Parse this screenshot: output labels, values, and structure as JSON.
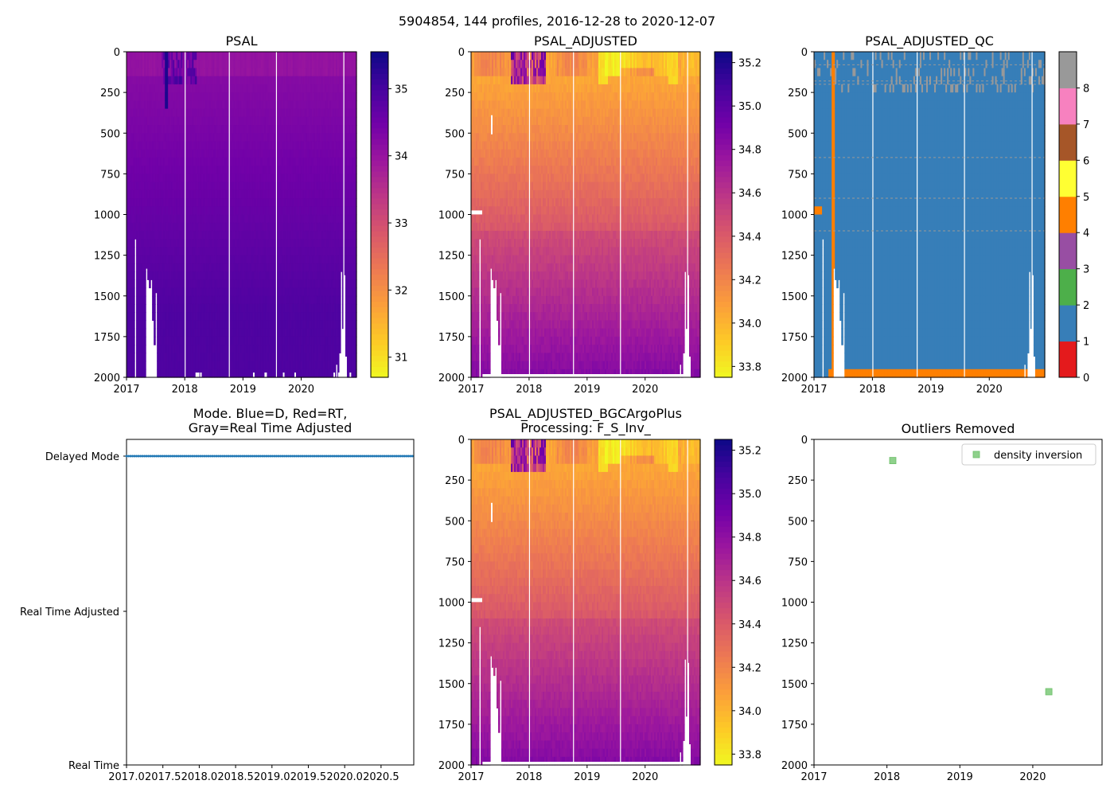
{
  "suptitle": "5904854, 144 profiles, 2016-12-28 to 2020-12-07",
  "chart_data": [
    {
      "id": "psal",
      "type": "heatmap",
      "title": "PSAL",
      "ylim": [
        2000,
        0
      ],
      "xlim": [
        2017.0,
        2020.95
      ],
      "xticks": [
        "2017",
        "2018",
        "2019",
        "2020"
      ],
      "yticks": [
        "0",
        "250",
        "500",
        "750",
        "1000",
        "1250",
        "1500",
        "1750",
        "2000"
      ],
      "colormap": "plasma_r",
      "color_range": [
        30.7,
        35.55
      ],
      "colorbar_ticks": [
        "31",
        "32",
        "33",
        "34",
        "35"
      ]
    },
    {
      "id": "psal_adj",
      "type": "heatmap",
      "title": "PSAL_ADJUSTED",
      "ylim": [
        2000,
        0
      ],
      "xlim": [
        2017.0,
        2020.95
      ],
      "xticks": [
        "2017",
        "2018",
        "2019",
        "2020"
      ],
      "yticks": [
        "0",
        "250",
        "500",
        "750",
        "1000",
        "1250",
        "1500",
        "1750",
        "2000"
      ],
      "colormap": "plasma_r",
      "color_range": [
        33.75,
        35.25
      ],
      "colorbar_ticks": [
        "33.8",
        "34.0",
        "34.2",
        "34.4",
        "34.6",
        "34.8",
        "35.0",
        "35.2"
      ]
    },
    {
      "id": "psal_qc",
      "type": "heatmap",
      "title": "PSAL_ADJUSTED_QC",
      "ylim": [
        2000,
        0
      ],
      "xlim": [
        2017.0,
        2020.95
      ],
      "xticks": [
        "2017",
        "2018",
        "2019",
        "2020"
      ],
      "yticks": [
        "0",
        "250",
        "500",
        "750",
        "1000",
        "1250",
        "1500",
        "1750",
        "2000"
      ],
      "colormap": "categorical",
      "qc_classes": [
        {
          "value": 0,
          "color": "#e41a1c"
        },
        {
          "value": 1,
          "color": "#377eb8"
        },
        {
          "value": 2,
          "color": "#4daf4a"
        },
        {
          "value": 3,
          "color": "#984ea3"
        },
        {
          "value": 4,
          "color": "#ff7f00"
        },
        {
          "value": 5,
          "color": "#ffff33"
        },
        {
          "value": 6,
          "color": "#a65628"
        },
        {
          "value": 7,
          "color": "#f781bf"
        },
        {
          "value": 8,
          "color": "#999999"
        }
      ],
      "colorbar_ticks": [
        "0",
        "1",
        "2",
        "3",
        "4",
        "5",
        "6",
        "7",
        "8"
      ]
    },
    {
      "id": "mode",
      "type": "scatter",
      "title_line1": "Mode. Blue=D, Red=RT,",
      "title_line2": "Gray=Real Time Adjusted",
      "xlim": [
        2017.0,
        2020.95
      ],
      "xticks": [
        "2017.0",
        "2017.5",
        "2018.0",
        "2018.5",
        "2019.0",
        "2019.5",
        "2020.0",
        "2020.5"
      ],
      "ytick_labels": [
        "Delayed Mode",
        "Real Time Adjusted",
        "Real Time"
      ],
      "series": [
        {
          "name": "Delayed Mode",
          "color": "#1f77b4",
          "x_range": [
            2017.0,
            2020.93
          ],
          "count": 144,
          "y": "Delayed Mode"
        }
      ]
    },
    {
      "id": "psal_bgc",
      "type": "heatmap",
      "title_line1": "PSAL_ADJUSTED_BGCArgoPlus",
      "title_line2": "Processing: F_S_Inv_",
      "ylim": [
        2000,
        0
      ],
      "xlim": [
        2017.0,
        2020.95
      ],
      "xticks": [
        "2017",
        "2018",
        "2019",
        "2020"
      ],
      "yticks": [
        "0",
        "250",
        "500",
        "750",
        "1000",
        "1250",
        "1500",
        "1750",
        "2000"
      ],
      "colormap": "plasma_r",
      "color_range": [
        33.75,
        35.25
      ],
      "colorbar_ticks": [
        "33.8",
        "34.0",
        "34.2",
        "34.4",
        "34.6",
        "34.8",
        "35.0",
        "35.2"
      ]
    },
    {
      "id": "outliers",
      "type": "scatter",
      "title": "Outliers Removed",
      "ylim": [
        2000,
        0
      ],
      "xlim": [
        2017.0,
        2020.95
      ],
      "xticks": [
        "2017",
        "2018",
        "2019",
        "2020"
      ],
      "yticks": [
        "0",
        "250",
        "500",
        "750",
        "1000",
        "1250",
        "1500",
        "1750",
        "2000"
      ],
      "legend": "density inversion",
      "legend_loc": "upper right",
      "marker_color": "#8fd18c",
      "points": [
        {
          "x": 2018.08,
          "y": 130
        },
        {
          "x": 2020.22,
          "y": 1550
        }
      ]
    }
  ]
}
